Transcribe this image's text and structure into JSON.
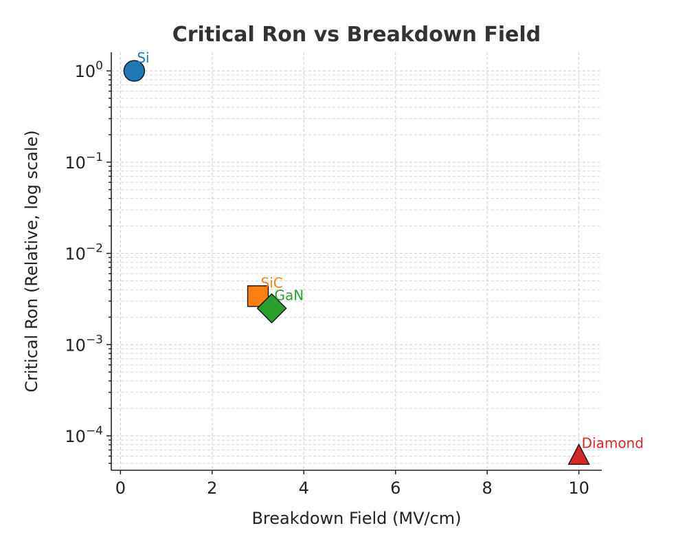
{
  "chart_data": {
    "type": "scatter",
    "title": "Critical Ron vs Breakdown Field",
    "xlabel": "Breakdown Field (MV/cm)",
    "ylabel": "Critical Ron (Relative, log scale)",
    "xlim": [
      -0.2,
      10.5
    ],
    "ylim": [
      4.2e-05,
      1.6
    ],
    "yscale": "log",
    "grid": true,
    "x_ticks": [
      0,
      2,
      4,
      6,
      8,
      10
    ],
    "x_tick_labels": [
      "0",
      "2",
      "4",
      "6",
      "8",
      "10"
    ],
    "y_ticks": [
      1,
      0.1,
      0.01,
      0.001,
      0.0001
    ],
    "y_tick_labels": [
      {
        "base": "10",
        "exp": "0"
      },
      {
        "base": "10",
        "exp": "−1"
      },
      {
        "base": "10",
        "exp": "−2"
      },
      {
        "base": "10",
        "exp": "−3"
      },
      {
        "base": "10",
        "exp": "−4"
      }
    ],
    "points": [
      {
        "label": "Si",
        "x": 0.3,
        "y": 1.0,
        "marker": "circle",
        "color": "#1f77b4"
      },
      {
        "label": "SiC",
        "x": 3.0,
        "y": 0.0034,
        "marker": "square",
        "color": "#ff7f0e"
      },
      {
        "label": "GaN",
        "x": 3.3,
        "y": 0.0025,
        "marker": "diamond",
        "color": "#2ca02c"
      },
      {
        "label": "Diamond",
        "x": 10.0,
        "y": 6e-05,
        "marker": "triangle",
        "color": "#d62728"
      }
    ]
  }
}
